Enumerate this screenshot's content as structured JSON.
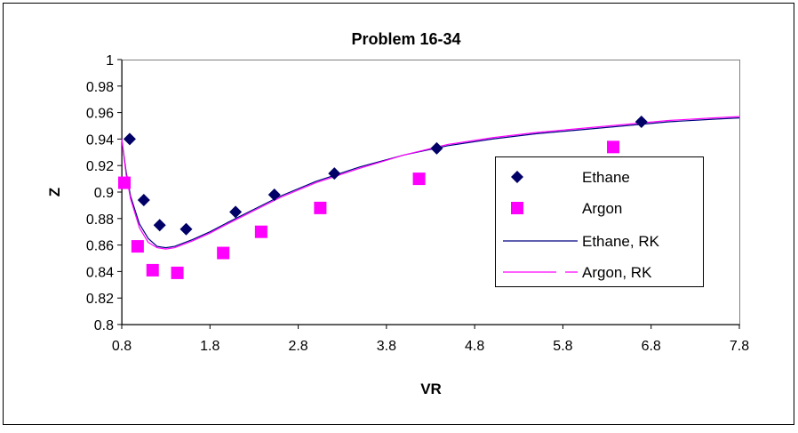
{
  "chart_data": {
    "type": "scatter",
    "title": "Problem 16-34",
    "xlabel": "VR",
    "ylabel": "Z",
    "xlim": [
      0.8,
      7.8
    ],
    "ylim": [
      0.8,
      1.0
    ],
    "x_ticks": [
      "0.8",
      "1.8",
      "2.8",
      "3.8",
      "4.8",
      "5.8",
      "6.8",
      "7.8"
    ],
    "y_ticks": [
      "0.8",
      "0.82",
      "0.84",
      "0.86",
      "0.88",
      "0.9",
      "0.92",
      "0.94",
      "0.96",
      "0.98",
      "1"
    ],
    "grid": false,
    "legend_position": "right",
    "series": [
      {
        "name": "Ethane",
        "kind": "markers",
        "marker": "diamond",
        "color": "#000066",
        "x": [
          0.89,
          1.05,
          1.23,
          1.53,
          2.09,
          2.53,
          3.21,
          4.37,
          6.69
        ],
        "y": [
          0.94,
          0.894,
          0.875,
          0.872,
          0.885,
          0.898,
          0.914,
          0.933,
          0.953
        ]
      },
      {
        "name": "Argon",
        "kind": "markers",
        "marker": "square",
        "color": "#ff00ff",
        "x": [
          0.83,
          0.98,
          1.15,
          1.43,
          1.95,
          2.38,
          3.05,
          4.17,
          6.37
        ],
        "y": [
          0.907,
          0.859,
          0.841,
          0.839,
          0.854,
          0.87,
          0.888,
          0.91,
          0.934
        ]
      },
      {
        "name": "Ethane, RK",
        "kind": "line",
        "color": "#000080",
        "x": [
          0.8,
          0.85,
          0.9,
          1.0,
          1.1,
          1.2,
          1.3,
          1.4,
          1.6,
          1.8,
          2.0,
          2.3,
          2.6,
          3.0,
          3.5,
          4.0,
          4.5,
          5.0,
          5.5,
          6.0,
          6.5,
          7.0,
          7.5,
          7.8
        ],
        "y": [
          0.94,
          0.915,
          0.897,
          0.876,
          0.865,
          0.859,
          0.858,
          0.859,
          0.864,
          0.87,
          0.877,
          0.887,
          0.897,
          0.908,
          0.919,
          0.928,
          0.935,
          0.94,
          0.944,
          0.947,
          0.95,
          0.953,
          0.955,
          0.956
        ]
      },
      {
        "name": "Argon, RK",
        "kind": "line",
        "dashed": true,
        "color": "#ff00ff",
        "x": [
          0.8,
          0.85,
          0.9,
          1.0,
          1.1,
          1.2,
          1.3,
          1.4,
          1.6,
          1.8,
          2.0,
          2.3,
          2.6,
          3.0,
          3.5,
          4.0,
          4.5,
          5.0,
          5.5,
          6.0,
          6.5,
          7.0,
          7.5,
          7.8
        ],
        "y": [
          0.94,
          0.913,
          0.895,
          0.873,
          0.862,
          0.858,
          0.857,
          0.858,
          0.863,
          0.869,
          0.876,
          0.886,
          0.896,
          0.907,
          0.918,
          0.928,
          0.936,
          0.941,
          0.945,
          0.948,
          0.951,
          0.954,
          0.956,
          0.957
        ]
      }
    ]
  }
}
